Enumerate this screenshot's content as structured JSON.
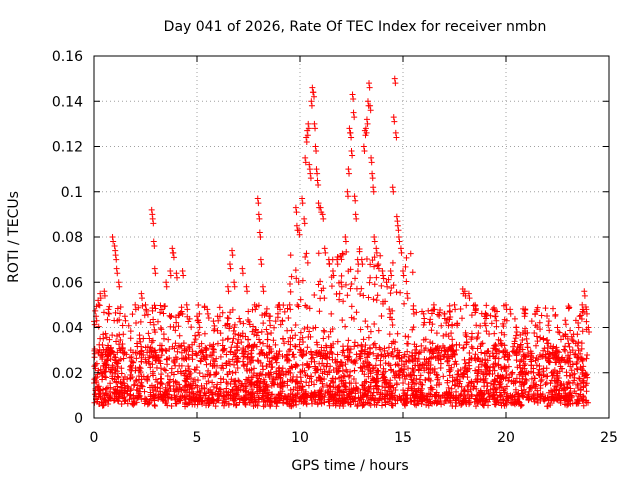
{
  "chart_data": {
    "type": "scatter",
    "title": "Day 041 of 2026, Rate Of TEC Index for receiver nmbn",
    "xlabel": "GPS time / hours",
    "ylabel": "ROTI / TECUs",
    "xlim": [
      0,
      25
    ],
    "ylim": [
      0,
      0.16
    ],
    "x_ticks": [
      0,
      5,
      10,
      15,
      20,
      25
    ],
    "x_tick_labels": [
      "0",
      "5",
      "10",
      "15",
      "20",
      "25"
    ],
    "y_ticks": [
      0,
      0.02,
      0.04,
      0.06,
      0.08,
      0.1,
      0.12,
      0.14,
      0.16
    ],
    "y_tick_labels": [
      "0",
      "0.02",
      "0.04",
      "0.06",
      "0.08",
      "0.1",
      "0.12",
      "0.14",
      "0.16"
    ],
    "grid": true,
    "marker": "+",
    "series": [
      {
        "color": "#ff0000",
        "marker": "+",
        "x_range": [
          0,
          24
        ],
        "baseline_band": [
          0.005,
          0.03
        ],
        "points": [
          [
            0.1,
            0.045
          ],
          [
            0.2,
            0.052
          ],
          [
            0.3,
            0.055
          ],
          [
            0.5,
            0.056
          ],
          [
            0.7,
            0.048
          ],
          [
            0.9,
            0.08
          ],
          [
            1.0,
            0.076
          ],
          [
            1.05,
            0.072
          ],
          [
            1.1,
            0.066
          ],
          [
            1.2,
            0.06
          ],
          [
            1.5,
            0.045
          ],
          [
            2.0,
            0.05
          ],
          [
            2.3,
            0.055
          ],
          [
            2.5,
            0.05
          ],
          [
            2.8,
            0.092
          ],
          [
            2.85,
            0.088
          ],
          [
            2.9,
            0.078
          ],
          [
            2.95,
            0.066
          ],
          [
            3.5,
            0.06
          ],
          [
            3.7,
            0.065
          ],
          [
            3.8,
            0.075
          ],
          [
            3.85,
            0.073
          ],
          [
            4.0,
            0.064
          ],
          [
            4.3,
            0.065
          ],
          [
            4.5,
            0.05
          ],
          [
            5.0,
            0.045
          ],
          [
            5.5,
            0.048
          ],
          [
            6.0,
            0.045
          ],
          [
            6.5,
            0.058
          ],
          [
            6.6,
            0.068
          ],
          [
            6.7,
            0.074
          ],
          [
            6.8,
            0.06
          ],
          [
            7.2,
            0.066
          ],
          [
            7.4,
            0.058
          ],
          [
            7.8,
            0.05
          ],
          [
            7.95,
            0.097
          ],
          [
            8.0,
            0.09
          ],
          [
            8.05,
            0.082
          ],
          [
            8.1,
            0.07
          ],
          [
            8.2,
            0.058
          ],
          [
            8.5,
            0.045
          ],
          [
            9.0,
            0.05
          ],
          [
            9.5,
            0.05
          ],
          [
            9.8,
            0.093
          ],
          [
            9.85,
            0.085
          ],
          [
            9.95,
            0.083
          ],
          [
            10.1,
            0.097
          ],
          [
            10.2,
            0.088
          ],
          [
            10.25,
            0.115
          ],
          [
            10.3,
            0.124
          ],
          [
            10.35,
            0.127
          ],
          [
            10.4,
            0.13
          ],
          [
            10.45,
            0.112
          ],
          [
            10.5,
            0.108
          ],
          [
            10.55,
            0.14
          ],
          [
            10.6,
            0.146
          ],
          [
            10.65,
            0.144
          ],
          [
            10.7,
            0.13
          ],
          [
            10.75,
            0.12
          ],
          [
            10.8,
            0.11
          ],
          [
            10.85,
            0.105
          ],
          [
            10.9,
            0.095
          ],
          [
            11.0,
            0.093
          ],
          [
            11.1,
            0.09
          ],
          [
            11.2,
            0.075
          ],
          [
            11.4,
            0.07
          ],
          [
            11.6,
            0.065
          ],
          [
            11.8,
            0.07
          ],
          [
            12.0,
            0.06
          ],
          [
            12.2,
            0.08
          ],
          [
            12.3,
            0.1
          ],
          [
            12.35,
            0.11
          ],
          [
            12.4,
            0.128
          ],
          [
            12.45,
            0.126
          ],
          [
            12.5,
            0.118
          ],
          [
            12.55,
            0.143
          ],
          [
            12.6,
            0.135
          ],
          [
            12.65,
            0.098
          ],
          [
            12.7,
            0.09
          ],
          [
            12.8,
            0.07
          ],
          [
            13.0,
            0.07
          ],
          [
            13.1,
            0.12
          ],
          [
            13.15,
            0.127
          ],
          [
            13.2,
            0.128
          ],
          [
            13.25,
            0.132
          ],
          [
            13.3,
            0.14
          ],
          [
            13.35,
            0.148
          ],
          [
            13.4,
            0.138
          ],
          [
            13.45,
            0.115
          ],
          [
            13.5,
            0.108
          ],
          [
            13.55,
            0.102
          ],
          [
            13.6,
            0.08
          ],
          [
            13.7,
            0.075
          ],
          [
            13.8,
            0.068
          ],
          [
            14.0,
            0.065
          ],
          [
            14.2,
            0.06
          ],
          [
            14.4,
            0.065
          ],
          [
            14.5,
            0.102
          ],
          [
            14.55,
            0.133
          ],
          [
            14.6,
            0.15
          ],
          [
            14.65,
            0.126
          ],
          [
            14.7,
            0.089
          ],
          [
            14.75,
            0.085
          ],
          [
            14.8,
            0.08
          ],
          [
            14.9,
            0.075
          ],
          [
            15.0,
            0.065
          ],
          [
            15.2,
            0.055
          ],
          [
            15.5,
            0.048
          ],
          [
            16.0,
            0.046
          ],
          [
            16.5,
            0.05
          ],
          [
            17.0,
            0.046
          ],
          [
            17.5,
            0.05
          ],
          [
            17.9,
            0.057
          ],
          [
            18.0,
            0.056
          ],
          [
            18.2,
            0.055
          ],
          [
            18.5,
            0.05
          ],
          [
            19.0,
            0.046
          ],
          [
            19.5,
            0.045
          ],
          [
            20.0,
            0.05
          ],
          [
            20.2,
            0.048
          ],
          [
            20.5,
            0.04
          ],
          [
            21.0,
            0.035
          ],
          [
            21.5,
            0.036
          ],
          [
            22.0,
            0.033
          ],
          [
            22.5,
            0.04
          ],
          [
            23.0,
            0.035
          ],
          [
            23.5,
            0.042
          ],
          [
            23.7,
            0.05
          ],
          [
            23.8,
            0.056
          ],
          [
            23.9,
            0.048
          ],
          [
            24.0,
            0.04
          ]
        ]
      }
    ]
  }
}
